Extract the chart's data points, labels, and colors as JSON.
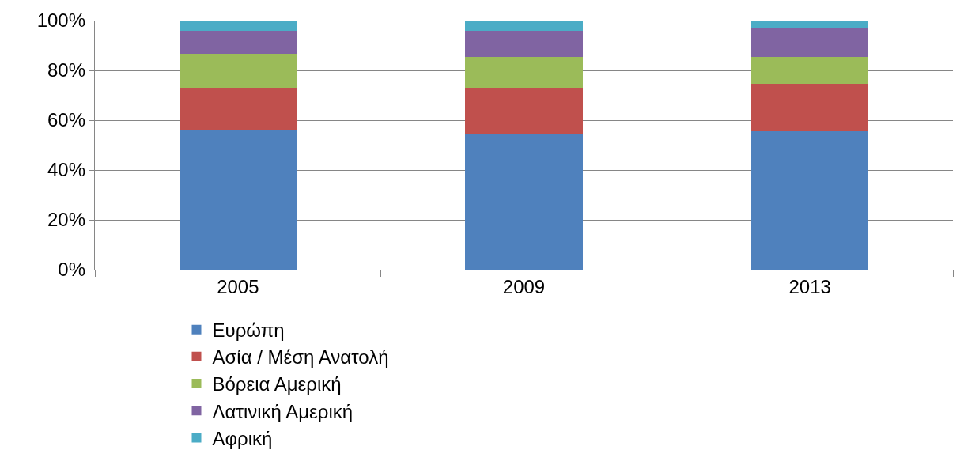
{
  "chart_data": {
    "type": "bar",
    "stacked": true,
    "categories": [
      "2005",
      "2009",
      "2013"
    ],
    "series": [
      {
        "name": "Ευρώπη",
        "color": "#4f81bd",
        "values": [
          56.1,
          54.7,
          55.5
        ]
      },
      {
        "name": "Ασία / Μέση Ανατολή",
        "color": "#c0504d",
        "values": [
          16.9,
          18.3,
          19.2
        ]
      },
      {
        "name": "Βόρεια Αμερική",
        "color": "#9bbb59",
        "values": [
          13.7,
          12.4,
          10.7
        ]
      },
      {
        "name": "Λατινική Αμερική",
        "color": "#8064a2",
        "values": [
          9.3,
          10.6,
          11.6
        ]
      },
      {
        "name": "Αφρική",
        "color": "#4bacc6",
        "values": [
          4.0,
          4.0,
          3.0
        ]
      }
    ],
    "ylim": [
      0,
      100
    ],
    "yticks": [
      {
        "value": 0,
        "label": "0%"
      },
      {
        "value": 20,
        "label": "20%"
      },
      {
        "value": 40,
        "label": "40%"
      },
      {
        "value": 60,
        "label": "60%"
      },
      {
        "value": 80,
        "label": "80%"
      },
      {
        "value": 100,
        "label": "100%"
      }
    ],
    "grid": "y",
    "legend": "bottom"
  }
}
